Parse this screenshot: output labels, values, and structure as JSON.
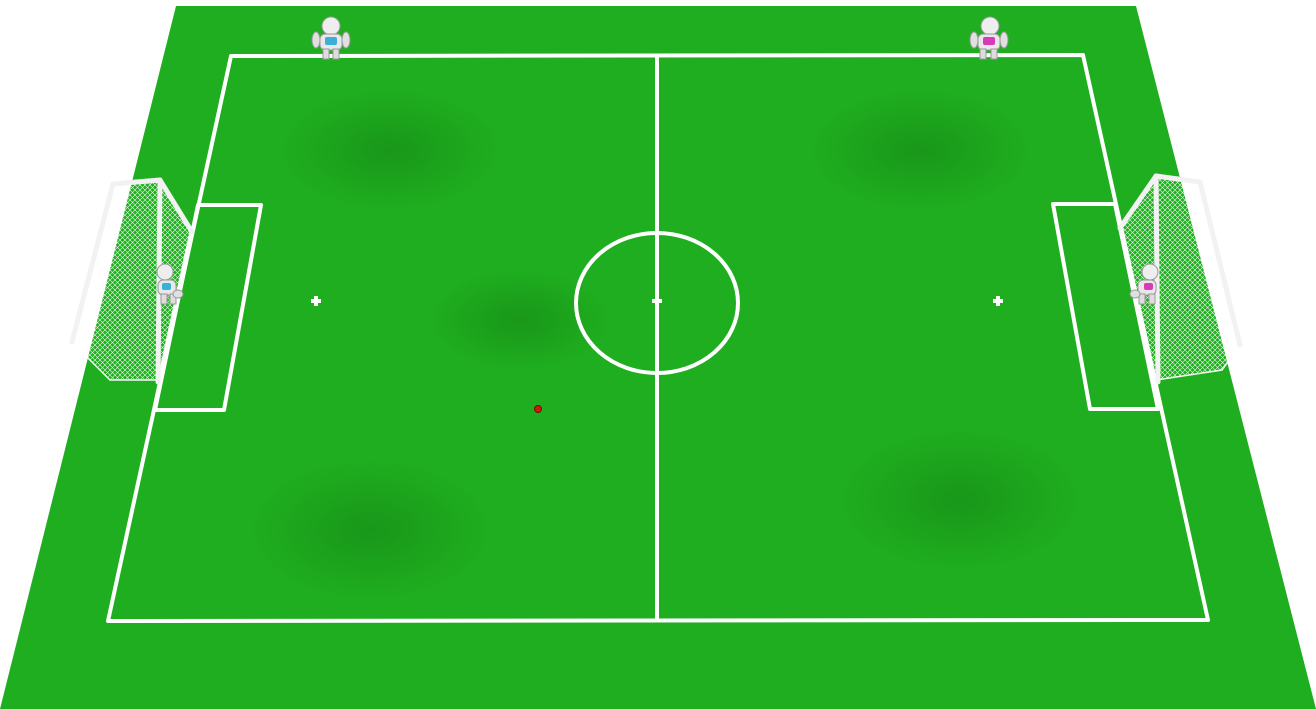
{
  "scene": {
    "field_color": "#1fae1f",
    "field_shadow_color": "#178c17",
    "line_color": "#ffffff",
    "ball_color": "#cc1a0a",
    "goal_color": "#f2f2f2",
    "net_color": "#ffffff"
  },
  "robots": [
    {
      "team": "blue",
      "role": "field-player",
      "accent": "#3ab0d8"
    },
    {
      "team": "blue",
      "role": "goalkeeper",
      "accent": "#3ab0d8"
    },
    {
      "team": "magenta",
      "role": "field-player",
      "accent": "#d83ab8"
    },
    {
      "team": "magenta",
      "role": "goalkeeper",
      "accent": "#d83ab8"
    }
  ]
}
